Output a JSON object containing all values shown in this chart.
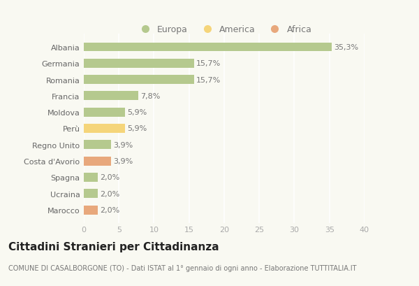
{
  "categories": [
    "Albania",
    "Germania",
    "Romania",
    "Francia",
    "Moldova",
    "Perù",
    "Regno Unito",
    "Costa d'Avorio",
    "Spagna",
    "Ucraina",
    "Marocco"
  ],
  "values": [
    35.3,
    15.7,
    15.7,
    7.8,
    5.9,
    5.9,
    3.9,
    3.9,
    2.0,
    2.0,
    2.0
  ],
  "labels": [
    "35,3%",
    "15,7%",
    "15,7%",
    "7,8%",
    "5,9%",
    "5,9%",
    "3,9%",
    "3,9%",
    "2,0%",
    "2,0%",
    "2,0%"
  ],
  "continents": [
    "Europa",
    "Europa",
    "Europa",
    "Europa",
    "Europa",
    "America",
    "Europa",
    "Africa",
    "Europa",
    "Europa",
    "Africa"
  ],
  "color_europa": "#b5c98e",
  "color_america": "#f5d57a",
  "color_africa": "#e8a87c",
  "legend_europa": "Europa",
  "legend_america": "America",
  "legend_africa": "Africa",
  "title": "Cittadini Stranieri per Cittadinanza",
  "subtitle": "COMUNE DI CASALBORGONE (TO) - Dati ISTAT al 1° gennaio di ogni anno - Elaborazione TUTTITALIA.IT",
  "xlim": [
    0,
    40
  ],
  "xticks": [
    0,
    5,
    10,
    15,
    20,
    25,
    30,
    35,
    40
  ],
  "background_color": "#f9f9f2",
  "grid_color": "#ffffff",
  "bar_height": 0.55,
  "title_fontsize": 11,
  "subtitle_fontsize": 7,
  "label_fontsize": 8,
  "tick_fontsize": 8,
  "legend_fontsize": 9
}
